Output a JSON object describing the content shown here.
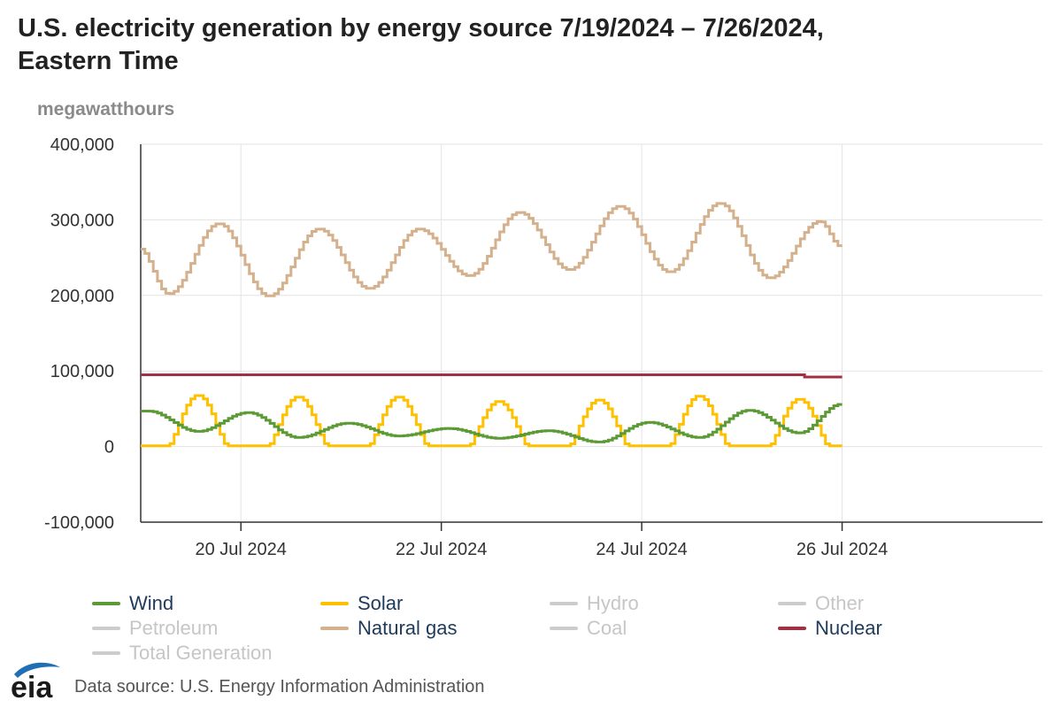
{
  "chart_data": {
    "type": "line",
    "title_line1": "U.S. electricity generation by energy source 7/19/2024 – 7/26/2024,",
    "title_line2": "Eastern Time",
    "ylabel": "megawatthours",
    "ylim": [
      -100000,
      400000
    ],
    "yticks": [
      -100000,
      0,
      100000,
      200000,
      300000,
      400000
    ],
    "ytick_labels": [
      "-100,000",
      "0",
      "100,000",
      "200,000",
      "300,000",
      "400,000"
    ],
    "xlim": [
      0,
      9
    ],
    "xticks": [
      {
        "day": 1,
        "label": "20 Jul 2024"
      },
      {
        "day": 3,
        "label": "22 Jul 2024"
      },
      {
        "day": 5,
        "label": "24 Jul 2024"
      },
      {
        "day": 7,
        "label": "26 Jul 2024"
      }
    ],
    "x_start_day": 0,
    "x_end_day": 7,
    "series": [
      {
        "name": "Wind",
        "color": "#5b9a35",
        "visible": true,
        "daily_peaks": [
          47000,
          45000,
          31000,
          24000,
          21000,
          32000,
          48000,
          56000
        ],
        "daily_troughs": [
          20000,
          12000,
          14000,
          11000,
          6000,
          12000,
          18000
        ]
      },
      {
        "name": "Solar",
        "color": "#ffc000",
        "visible": true,
        "daily_peak": [
          68000,
          66000,
          66000,
          60000,
          62000,
          67000,
          63000
        ],
        "night_value": 1000
      },
      {
        "name": "Hydro",
        "color": "#cccccc",
        "visible": false
      },
      {
        "name": "Other",
        "color": "#cccccc",
        "visible": false
      },
      {
        "name": "Petroleum",
        "color": "#cccccc",
        "visible": false
      },
      {
        "name": "Natural gas",
        "color": "#d4b08c",
        "visible": true,
        "daily_troughs": [
          202000,
          199000,
          209000,
          226000,
          234000,
          231000,
          223000
        ],
        "daily_peaks": [
          295000,
          288000,
          288000,
          310000,
          318000,
          322000,
          298000
        ],
        "start_value": 262000,
        "end_value": 265000
      },
      {
        "name": "Coal",
        "color": "#cccccc",
        "visible": false
      },
      {
        "name": "Nuclear",
        "color": "#a13041",
        "visible": true,
        "level": 95000,
        "end_value": 92000
      },
      {
        "name": "Total Generation",
        "color": "#cccccc",
        "visible": false
      }
    ]
  },
  "legend": {
    "active_text_color": "#1f3a5a",
    "inactive_text_color": "#c6c6c6"
  },
  "footer": {
    "logo_text": "eia",
    "source": "Data source: U.S. Energy Information Administration"
  }
}
